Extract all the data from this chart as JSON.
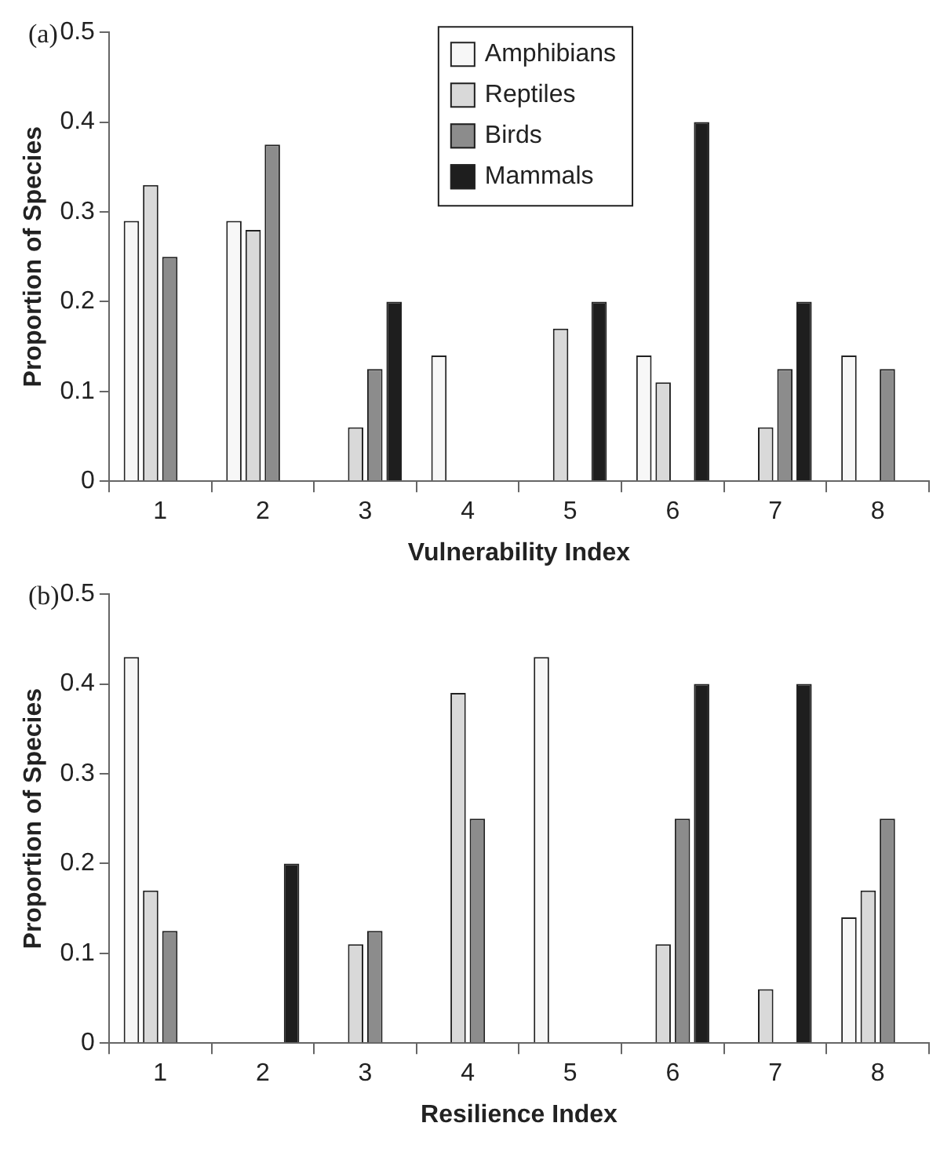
{
  "chart_data": [
    {
      "type": "bar",
      "xlabel": "Vulnerability Index",
      "ylabel": "Proportion of Species",
      "annotations": [
        "(a)"
      ],
      "categories": [
        "1",
        "2",
        "3",
        "4",
        "5",
        "6",
        "7",
        "8"
      ],
      "series": [
        {
          "name": "Amphibians",
          "color": "#f7f7f7",
          "values": [
            0.29,
            0.29,
            0,
            0.14,
            0,
            0.14,
            0,
            0.14
          ]
        },
        {
          "name": "Reptiles",
          "color": "#d9d9d9",
          "values": [
            0.33,
            0.28,
            0.06,
            0,
            0.17,
            0.11,
            0.06,
            0
          ]
        },
        {
          "name": "Birds",
          "color": "#8c8c8c",
          "values": [
            0.25,
            0.375,
            0.125,
            0,
            0,
            0,
            0.125,
            0.125
          ]
        },
        {
          "name": "Mammals",
          "color": "#1e1e1e",
          "values": [
            0,
            0,
            0.2,
            0,
            0.2,
            0.4,
            0.2,
            0
          ]
        }
      ],
      "ylim": [
        0,
        0.5
      ],
      "yticks": [
        0,
        0.1,
        0.2,
        0.3,
        0.4,
        0.5
      ],
      "grid": false,
      "legend": "top"
    },
    {
      "type": "bar",
      "xlabel": "Resilience Index",
      "ylabel": "Proportion of Species",
      "annotations": [
        "(b)"
      ],
      "categories": [
        "1",
        "2",
        "3",
        "4",
        "5",
        "6",
        "7",
        "8"
      ],
      "series": [
        {
          "color": "#f7f7f7",
          "values": [
            0.43,
            0,
            0,
            0,
            0.43,
            0,
            0,
            0.14
          ]
        },
        {
          "color": "#d9d9d9",
          "values": [
            0.17,
            0,
            0.11,
            0.39,
            0,
            0.11,
            0.06,
            0.17
          ]
        },
        {
          "color": "#8c8c8c",
          "values": [
            0.125,
            0,
            0.125,
            0.25,
            0,
            0.25,
            0,
            0.25
          ]
        },
        {
          "color": "#1e1e1e",
          "values": [
            0,
            0.2,
            0,
            0,
            0,
            0.4,
            0.4,
            0
          ]
        }
      ],
      "ylim": [
        0,
        0.5
      ],
      "yticks": [
        0,
        0.1,
        0.2,
        0.3,
        0.4,
        0.5
      ],
      "grid": false,
      "legend": false
    }
  ]
}
